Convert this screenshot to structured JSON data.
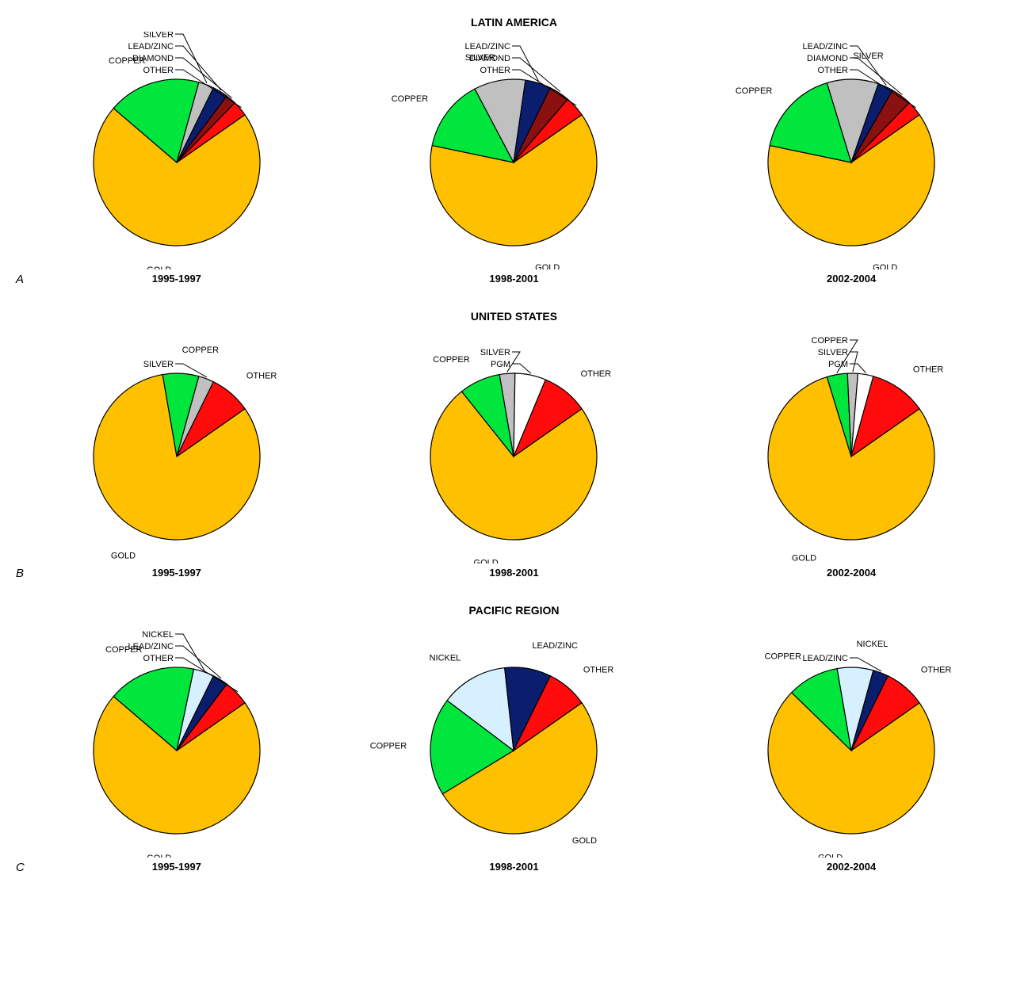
{
  "colors": {
    "GOLD": "#ffc000",
    "COPPER": "#00e63d",
    "SILVER": "#c0c0c0",
    "LEAD/ZINC": "#0b1d6d",
    "DIAMOND": "#8b1010",
    "OTHER": "#ff0b0b",
    "PGM": "#ffffff",
    "NICKEL": "#d6f0ff",
    "stroke": "#000000",
    "background": "#ffffff"
  },
  "chart": {
    "pie_radius": 105,
    "stroke_width": 1.2,
    "start_angle_deg": 55,
    "label_fontsize": 11,
    "title_fontsize": 14,
    "period_fontsize": 13
  },
  "rows": [
    {
      "letter": "A",
      "region_title": "LATIN AMERICA",
      "charts": [
        {
          "period": "1995-1997",
          "slices": [
            {
              "label": "GOLD",
              "value": 71,
              "color_key": "GOLD"
            },
            {
              "label": "COPPER",
              "value": 18,
              "color_key": "COPPER"
            },
            {
              "label": "SILVER",
              "value": 3,
              "color_key": "SILVER"
            },
            {
              "label": "LEAD/ZINC",
              "value": 3,
              "color_key": "LEAD/ZINC"
            },
            {
              "label": "DIAMOND",
              "value": 2,
              "color_key": "DIAMOND"
            },
            {
              "label": "OTHER",
              "value": 3,
              "color_key": "OTHER"
            }
          ]
        },
        {
          "period": "1998-2001",
          "slices": [
            {
              "label": "GOLD",
              "value": 63,
              "color_key": "GOLD"
            },
            {
              "label": "COPPER",
              "value": 14,
              "color_key": "COPPER"
            },
            {
              "label": "SILVER",
              "value": 10,
              "color_key": "SILVER"
            },
            {
              "label": "LEAD/ZINC",
              "value": 5,
              "color_key": "LEAD/ZINC"
            },
            {
              "label": "DIAMOND",
              "value": 4,
              "color_key": "DIAMOND"
            },
            {
              "label": "OTHER",
              "value": 4,
              "color_key": "OTHER"
            }
          ]
        },
        {
          "period": "2002-2004",
          "slices": [
            {
              "label": "GOLD",
              "value": 63,
              "color_key": "GOLD"
            },
            {
              "label": "COPPER",
              "value": 17,
              "color_key": "COPPER"
            },
            {
              "label": "SILVER",
              "value": 10,
              "color_key": "SILVER"
            },
            {
              "label": "LEAD/ZINC",
              "value": 3,
              "color_key": "LEAD/ZINC"
            },
            {
              "label": "DIAMOND",
              "value": 4,
              "color_key": "DIAMOND"
            },
            {
              "label": "OTHER",
              "value": 3,
              "color_key": "OTHER"
            }
          ]
        }
      ]
    },
    {
      "letter": "B",
      "region_title": "UNITED STATES",
      "charts": [
        {
          "period": "1995-1997",
          "slices": [
            {
              "label": "GOLD",
              "value": 82,
              "color_key": "GOLD"
            },
            {
              "label": "COPPER",
              "value": 7,
              "color_key": "COPPER"
            },
            {
              "label": "SILVER",
              "value": 3,
              "color_key": "SILVER"
            },
            {
              "label": "OTHER",
              "value": 8,
              "color_key": "OTHER"
            }
          ]
        },
        {
          "period": "1998-2001",
          "slices": [
            {
              "label": "GOLD",
              "value": 74,
              "color_key": "GOLD"
            },
            {
              "label": "COPPER",
              "value": 8,
              "color_key": "COPPER"
            },
            {
              "label": "SILVER",
              "value": 3,
              "color_key": "SILVER"
            },
            {
              "label": "PGM",
              "value": 6,
              "color_key": "PGM"
            },
            {
              "label": "OTHER",
              "value": 9,
              "color_key": "OTHER"
            }
          ]
        },
        {
          "period": "2002-2004",
          "slices": [
            {
              "label": "GOLD",
              "value": 80,
              "color_key": "GOLD"
            },
            {
              "label": "COPPER",
              "value": 4,
              "color_key": "COPPER"
            },
            {
              "label": "SILVER",
              "value": 2,
              "color_key": "SILVER"
            },
            {
              "label": "PGM",
              "value": 3,
              "color_key": "PGM"
            },
            {
              "label": "OTHER",
              "value": 11,
              "color_key": "OTHER"
            }
          ]
        }
      ]
    },
    {
      "letter": "C",
      "region_title": "PACIFIC REGION",
      "charts": [
        {
          "period": "1995-1997",
          "slices": [
            {
              "label": "GOLD",
              "value": 71,
              "color_key": "GOLD"
            },
            {
              "label": "COPPER",
              "value": 17,
              "color_key": "COPPER"
            },
            {
              "label": "NICKEL",
              "value": 4,
              "color_key": "NICKEL"
            },
            {
              "label": "LEAD/ZINC",
              "value": 3,
              "color_key": "LEAD/ZINC"
            },
            {
              "label": "OTHER",
              "value": 5,
              "color_key": "OTHER"
            }
          ]
        },
        {
          "period": "1998-2001",
          "slices": [
            {
              "label": "GOLD",
              "value": 51,
              "color_key": "GOLD"
            },
            {
              "label": "COPPER",
              "value": 19,
              "color_key": "COPPER"
            },
            {
              "label": "NICKEL",
              "value": 13,
              "color_key": "NICKEL"
            },
            {
              "label": "LEAD/ZINC",
              "value": 9,
              "color_key": "LEAD/ZINC"
            },
            {
              "label": "OTHER",
              "value": 8,
              "color_key": "OTHER"
            }
          ]
        },
        {
          "period": "2002-2004",
          "slices": [
            {
              "label": "GOLD",
              "value": 72,
              "color_key": "GOLD"
            },
            {
              "label": "COPPER",
              "value": 10,
              "color_key": "COPPER"
            },
            {
              "label": "NICKEL",
              "value": 7,
              "color_key": "NICKEL"
            },
            {
              "label": "LEAD/ZINC",
              "value": 3,
              "color_key": "LEAD/ZINC"
            },
            {
              "label": "OTHER",
              "value": 8,
              "color_key": "OTHER"
            }
          ]
        }
      ]
    }
  ]
}
